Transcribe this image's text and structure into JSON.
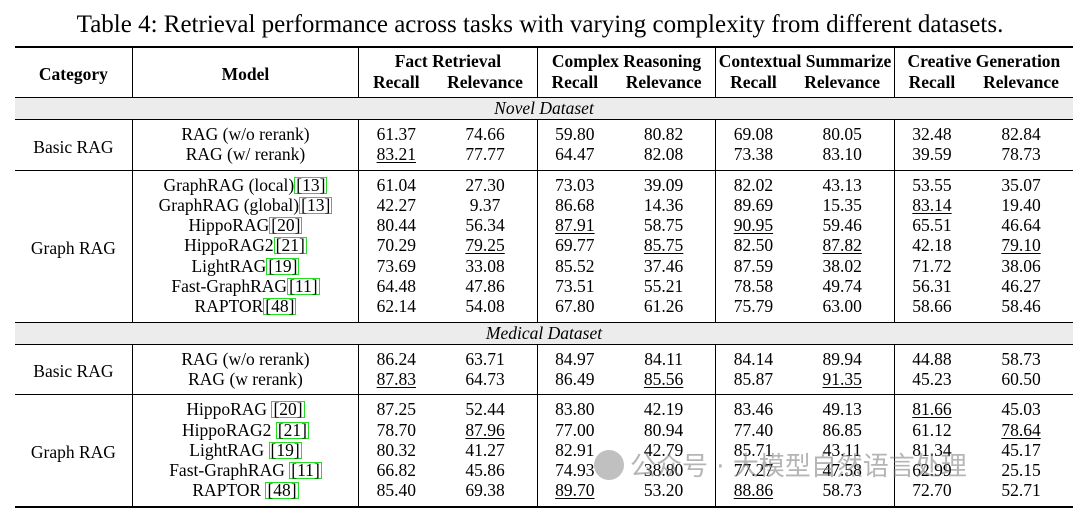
{
  "caption": "Table 4: Retrieval performance across tasks with varying complexity from different datasets.",
  "header": {
    "category": "Category",
    "model": "Model",
    "tasks": [
      "Fact Retrieval",
      "Complex Reasoning",
      "Contextual Summarize",
      "Creative Generation"
    ],
    "recall": "Recall",
    "relevance": "Relevance"
  },
  "sections": [
    {
      "title": "Novel Dataset",
      "groups": [
        {
          "category": "Basic RAG",
          "rows": [
            {
              "model": "RAG (w/o rerank)",
              "ref": "",
              "values": [
                "61.37",
                "74.66",
                "59.80",
                "80.82",
                "69.08",
                "80.05",
                "32.48",
                "82.84"
              ],
              "underline": []
            },
            {
              "model": "RAG (w/ rerank)",
              "ref": "",
              "values": [
                "83.21",
                "77.77",
                "64.47",
                "82.08",
                "73.38",
                "83.10",
                "39.59",
                "78.73"
              ],
              "underline": [
                0
              ]
            }
          ]
        },
        {
          "category": "Graph RAG",
          "rows": [
            {
              "model": "GraphRAG (local)",
              "ref": "13",
              "values": [
                "61.04",
                "27.30",
                "73.03",
                "39.09",
                "82.02",
                "43.13",
                "53.55",
                "35.07"
              ],
              "underline": []
            },
            {
              "model": "GraphRAG (global)",
              "ref": "13",
              "values": [
                "42.27",
                "9.37",
                "86.68",
                "14.36",
                "89.69",
                "15.35",
                "83.14",
                "19.40"
              ],
              "underline": [
                6
              ]
            },
            {
              "model": "HippoRAG",
              "ref": "20",
              "values": [
                "80.44",
                "56.34",
                "87.91",
                "58.75",
                "90.95",
                "59.46",
                "65.51",
                "46.64"
              ],
              "underline": [
                2,
                4
              ]
            },
            {
              "model": "HippoRAG2",
              "ref": "21",
              "values": [
                "70.29",
                "79.25",
                "69.77",
                "85.75",
                "82.50",
                "87.82",
                "42.18",
                "79.10"
              ],
              "underline": [
                1,
                3,
                5,
                7
              ]
            },
            {
              "model": "LightRAG",
              "ref": "19",
              "values": [
                "73.69",
                "33.08",
                "85.52",
                "37.46",
                "87.59",
                "38.02",
                "71.72",
                "38.06"
              ],
              "underline": []
            },
            {
              "model": "Fast-GraphRAG",
              "ref": "11",
              "values": [
                "64.48",
                "47.86",
                "73.51",
                "55.21",
                "78.58",
                "49.74",
                "56.31",
                "46.27"
              ],
              "underline": []
            },
            {
              "model": "RAPTOR",
              "ref": "48",
              "values": [
                "62.14",
                "54.08",
                "67.80",
                "61.26",
                "75.79",
                "63.00",
                "58.66",
                "58.46"
              ],
              "underline": []
            }
          ]
        }
      ]
    },
    {
      "title": "Medical Dataset",
      "groups": [
        {
          "category": "Basic RAG",
          "rows": [
            {
              "model": "RAG (w/o rerank)",
              "ref": "",
              "values": [
                "86.24",
                "63.71",
                "84.97",
                "84.11",
                "84.14",
                "89.94",
                "44.88",
                "58.73"
              ],
              "underline": []
            },
            {
              "model": "RAG (w rerank)",
              "ref": "",
              "values": [
                "87.83",
                "64.73",
                "86.49",
                "85.56",
                "85.87",
                "91.35",
                "45.23",
                "60.50"
              ],
              "underline": [
                0,
                3,
                5
              ]
            }
          ]
        },
        {
          "category": "Graph RAG",
          "rows": [
            {
              "model": "HippoRAG ",
              "ref": "20",
              "values": [
                "87.25",
                "52.44",
                "83.80",
                "42.19",
                "83.46",
                "49.13",
                "81.66",
                "45.03"
              ],
              "underline": [
                6
              ]
            },
            {
              "model": "HippoRAG2 ",
              "ref": "21",
              "values": [
                "78.70",
                "87.96",
                "77.00",
                "80.94",
                "77.40",
                "86.85",
                "61.12",
                "78.64"
              ],
              "underline": [
                1,
                7
              ]
            },
            {
              "model": "LightRAG ",
              "ref": "19",
              "values": [
                "80.32",
                "41.27",
                "82.91",
                "42.79",
                "85.71",
                "43.11",
                "81.34",
                "45.17"
              ],
              "underline": []
            },
            {
              "model": "Fast-GraphRAG ",
              "ref": "11",
              "values": [
                "66.82",
                "45.86",
                "74.93",
                "38.80",
                "77.27",
                "47.58",
                "62.99",
                "25.15"
              ],
              "underline": []
            },
            {
              "model": "RAPTOR ",
              "ref": "48",
              "values": [
                "85.40",
                "69.38",
                "89.70",
                "53.20",
                "88.86",
                "58.73",
                "72.70",
                "52.71"
              ],
              "underline": [
                2,
                4
              ]
            }
          ]
        }
      ]
    }
  ],
  "watermark": "公众号 · 大模型自然语言处理"
}
